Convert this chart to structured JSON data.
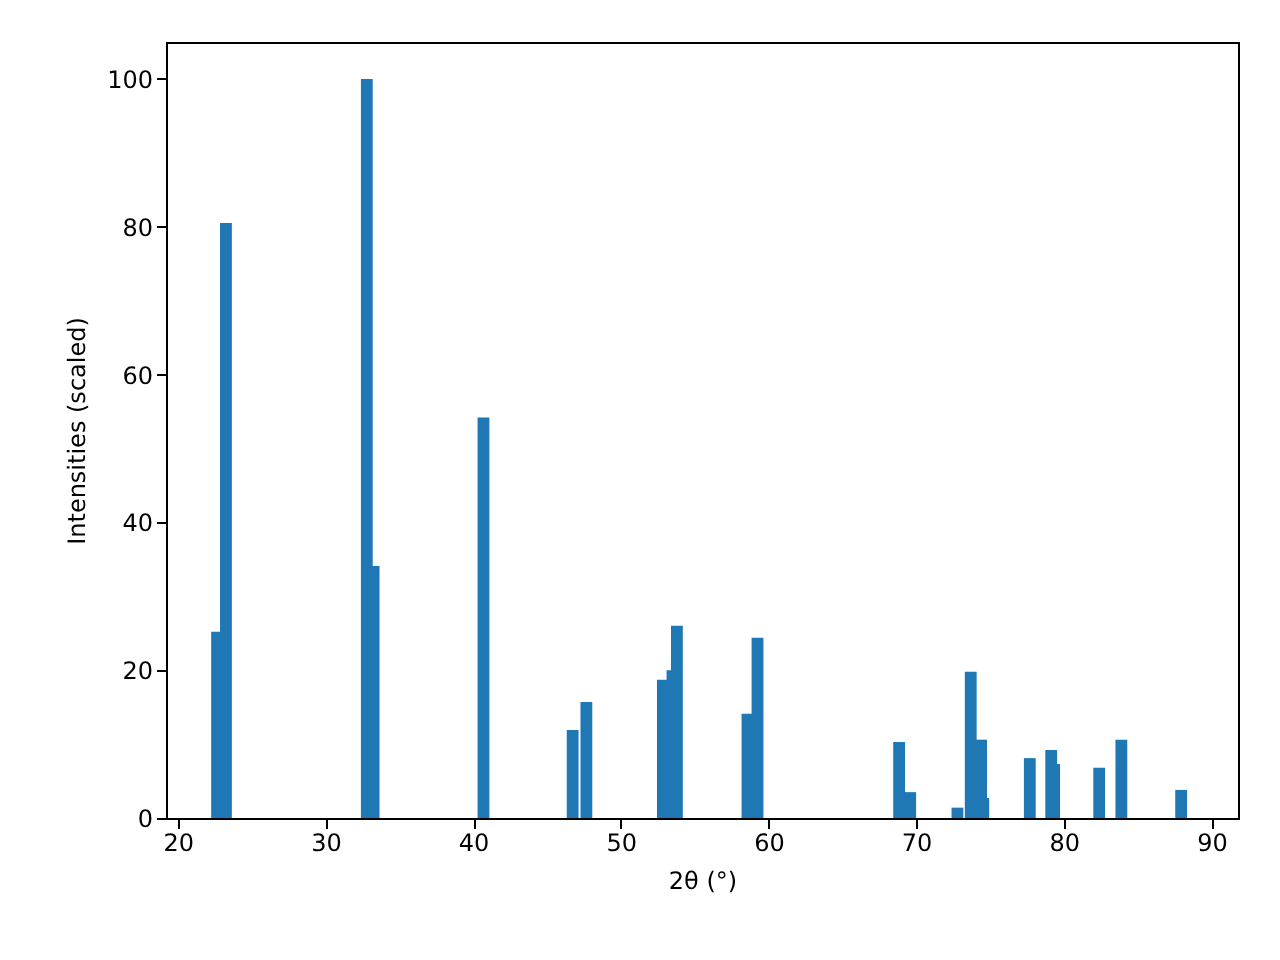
{
  "chart_data": {
    "type": "bar",
    "xlabel": "2θ (°)",
    "ylabel": "Intensities (scaled)",
    "x": [
      22.66,
      23.26,
      32.8,
      33.26,
      40.7,
      46.74,
      47.67,
      52.85,
      53.5,
      53.8,
      58.58,
      59.26,
      68.85,
      69.6,
      72.8,
      73.7,
      74.4,
      74.55,
      77.7,
      79.15,
      79.35,
      82.4,
      83.9,
      87.95
    ],
    "series": [
      {
        "color": "#1f77b4",
        "values": [
          25.2,
          80.5,
          100,
          34.1,
          54.2,
          11.9,
          15.7,
          18.7,
          20.0,
          26.0,
          14.1,
          24.4,
          10.3,
          3.5,
          1.4,
          19.8,
          10.6,
          2.7,
          8.1,
          9.2,
          7.3,
          6.8,
          10.6,
          3.8
        ]
      }
    ],
    "xlim": [
      19.2,
      91.8
    ],
    "ylim": [
      0,
      105
    ],
    "xticks": [
      20,
      30,
      40,
      50,
      60,
      70,
      80,
      90
    ],
    "yticks": [
      0,
      20,
      40,
      60,
      80,
      100
    ],
    "grid": false
  }
}
